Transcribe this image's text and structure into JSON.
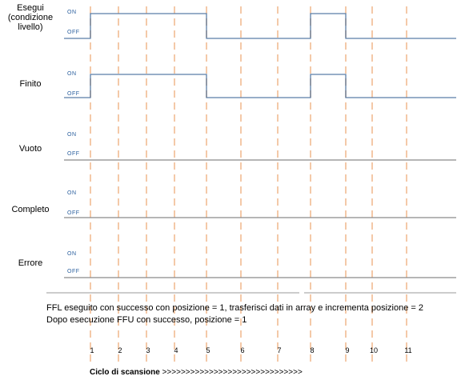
{
  "signals": [
    {
      "label": "Esegui\n(condizione\nlivello)",
      "on": "ON",
      "off": "OFF",
      "active": [
        [
          1,
          5
        ],
        [
          8,
          9
        ]
      ]
    },
    {
      "label": "Finito",
      "on": "ON",
      "off": "OFF",
      "active": [
        [
          1,
          5
        ],
        [
          8,
          9
        ]
      ]
    },
    {
      "label": "Vuoto",
      "on": "ON",
      "off": "OFF",
      "active": []
    },
    {
      "label": "Completo",
      "on": "ON",
      "off": "OFF",
      "active": []
    },
    {
      "label": "Errore",
      "on": "ON",
      "off": "OFF",
      "active": []
    }
  ],
  "scan_cycles": [
    "1",
    "2",
    "3",
    "4",
    "5",
    "6",
    "7",
    "8",
    "9",
    "10",
    "11"
  ],
  "notes": [
    "FFL eseguito con successo con posizione = 1, trasferisci dati in array e incrementa posizione = 2",
    "Dopo esecuzione FFU con successo, posizione = 1"
  ],
  "footer": {
    "label": "Ciclo di scansione",
    "arrows": ">>>>>>>>>>>>>>>>>>>>>>>>>>>>>>"
  },
  "colors": {
    "dashed": "#f4c9a8",
    "signal": "#5b7ea6",
    "baseline": "#8a8a8a",
    "level_text": "#2a5f9e"
  }
}
